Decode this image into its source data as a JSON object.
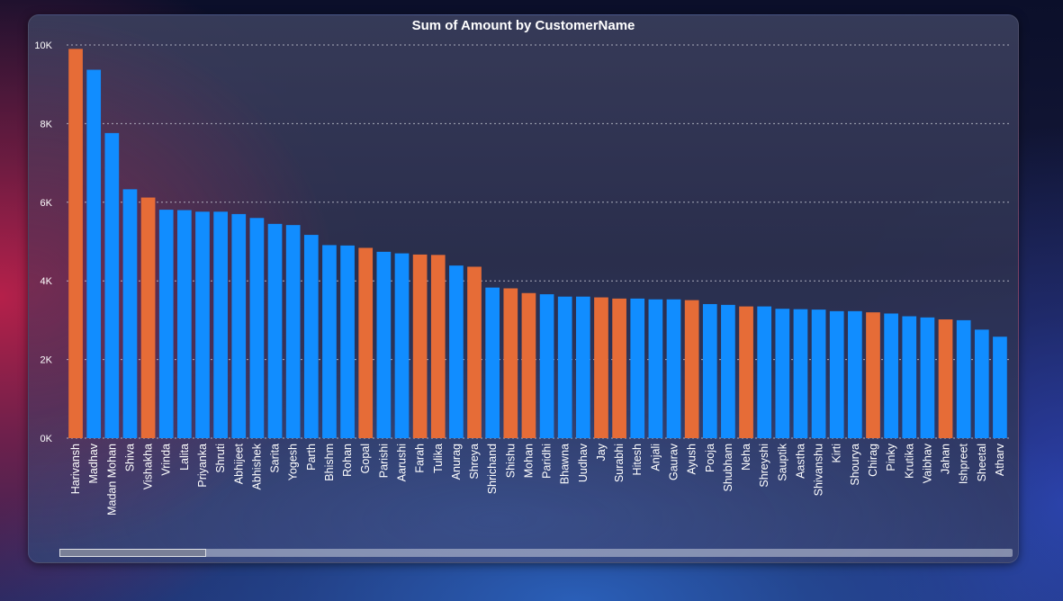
{
  "chart_data": {
    "type": "bar",
    "title": "Sum of Amount by CustomerName",
    "xlabel": "",
    "ylabel": "",
    "ylim": [
      0,
      10000
    ],
    "yticks": [
      0,
      2000,
      4000,
      6000,
      8000,
      10000
    ],
    "ytick_labels": [
      "0K",
      "2K",
      "4K",
      "6K",
      "8K",
      "10K"
    ],
    "grid": true,
    "categories": [
      "Harivansh",
      "Madhav",
      "Madan Mohan",
      "Shiva",
      "Vishakha",
      "Vrinda",
      "Lalita",
      "Priyanka",
      "Shruti",
      "Abhijeet",
      "Abhishek",
      "Sarita",
      "Yogesh",
      "Parth",
      "Bhishm",
      "Rohan",
      "Gopal",
      "Parishi",
      "Aarushi",
      "Farah",
      "Tulika",
      "Anurag",
      "Shreya",
      "Shrichand",
      "Shishu",
      "Mohan",
      "Paridhi",
      "Bhawna",
      "Uudhav",
      "Jay",
      "Surabhi",
      "Hitesh",
      "Anjali",
      "Gaurav",
      "Ayush",
      "Pooja",
      "Shubham",
      "Neha",
      "Shreyshi",
      "Sauptik",
      "Aastha",
      "Shivanshu",
      "Kirti",
      "Shourya",
      "Chirag",
      "Pinky",
      "Krutika",
      "Vaibhav",
      "Jahan",
      "Ishpreet",
      "Sheetal",
      "Atharv"
    ],
    "values": [
      9900,
      9370,
      7760,
      6330,
      6120,
      5810,
      5800,
      5760,
      5760,
      5700,
      5600,
      5450,
      5420,
      5170,
      4910,
      4900,
      4840,
      4740,
      4700,
      4670,
      4660,
      4390,
      4360,
      3830,
      3810,
      3690,
      3660,
      3600,
      3600,
      3580,
      3550,
      3550,
      3530,
      3530,
      3510,
      3410,
      3390,
      3350,
      3350,
      3290,
      3280,
      3270,
      3230,
      3230,
      3200,
      3170,
      3100,
      3070,
      3020,
      3000,
      2760,
      2580
    ],
    "highlight": [
      true,
      false,
      false,
      false,
      true,
      false,
      false,
      false,
      false,
      false,
      false,
      false,
      false,
      false,
      false,
      false,
      true,
      false,
      false,
      true,
      true,
      false,
      true,
      false,
      true,
      true,
      false,
      false,
      false,
      true,
      true,
      false,
      false,
      false,
      true,
      false,
      false,
      true,
      false,
      false,
      false,
      false,
      false,
      false,
      true,
      false,
      false,
      false,
      true,
      false,
      false,
      false
    ],
    "colors": {
      "primary": "#118DFF",
      "highlight": "#E66C37",
      "gridline": "#C9CBD6",
      "text": "#FFFFFF"
    },
    "scroll_position": 0.0,
    "scroll_fraction_visible": 0.154
  }
}
